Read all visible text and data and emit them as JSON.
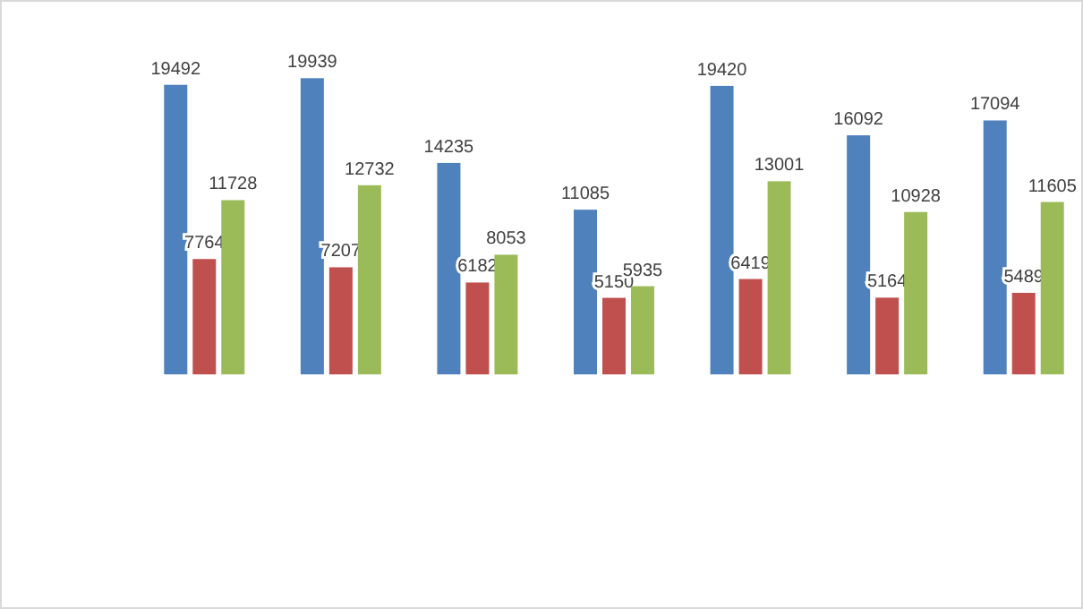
{
  "chart_data": {
    "type": "bar",
    "categories": [
      null,
      null,
      null,
      null,
      null,
      null,
      null
    ],
    "data_labels": true,
    "series": [
      {
        "color": "#4f81bd",
        "values": [
          19492,
          19939,
          14235,
          11085,
          19420,
          16092,
          17094
        ]
      },
      {
        "color": "#c0504d",
        "values": [
          7764,
          7207,
          6182,
          5150,
          6419,
          5164,
          5489
        ]
      },
      {
        "color": "#9bbb59",
        "values": [
          11728,
          12732,
          8053,
          5935,
          13001,
          10928,
          11605
        ]
      }
    ]
  }
}
